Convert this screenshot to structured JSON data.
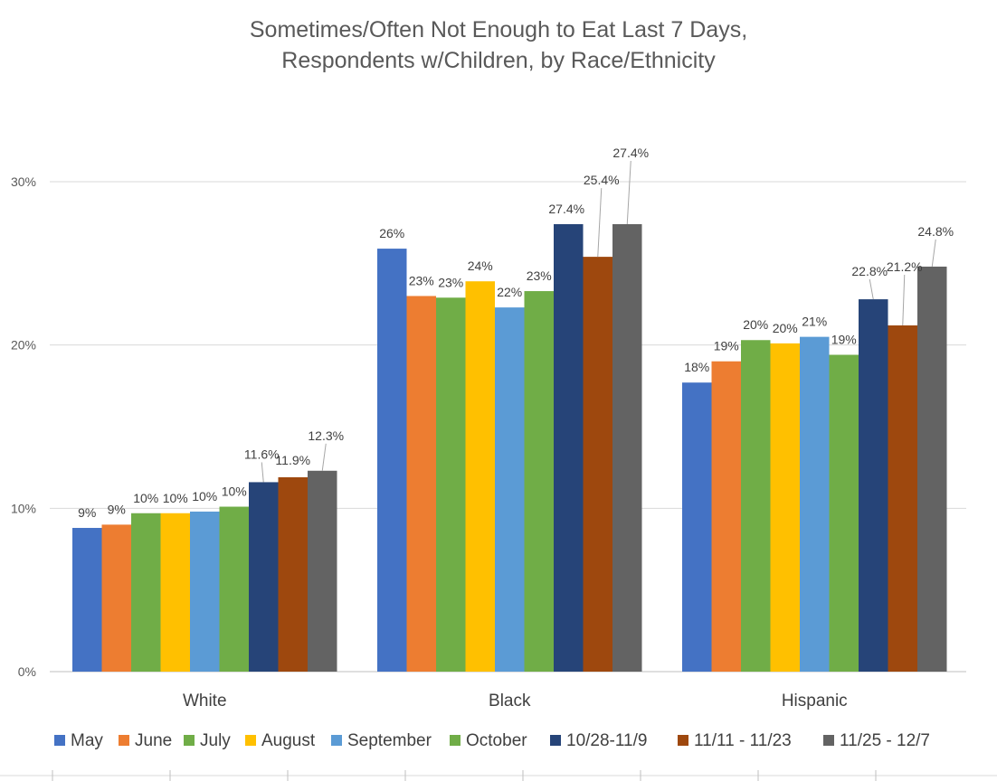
{
  "chart_data": {
    "type": "bar",
    "title_lines": [
      "Sometimes/Often Not Enough to Eat Last 7 Days,",
      "Respondents w/Children, by Race/Ethnicity"
    ],
    "categories": [
      "White",
      "Black",
      "Hispanic"
    ],
    "ylim": [
      0,
      30
    ],
    "yticks": [
      0,
      10,
      20,
      30
    ],
    "ytick_labels": [
      "0%",
      "10%",
      "20%",
      "30%"
    ],
    "grid": true,
    "legend_position": "bottom",
    "series": [
      {
        "name": "May",
        "color": "#4472C4",
        "values": [
          8.8,
          25.9,
          17.7
        ],
        "labels": [
          "9%",
          "26%",
          "18%"
        ]
      },
      {
        "name": "June",
        "color": "#ED7D31",
        "values": [
          9.0,
          23.0,
          19.0
        ],
        "labels": [
          "9%",
          "23%",
          "19%"
        ]
      },
      {
        "name": "July",
        "color": "#70AD47",
        "values": [
          9.7,
          22.9,
          20.3
        ],
        "labels": [
          "10%",
          "23%",
          "20%"
        ]
      },
      {
        "name": "August",
        "color": "#FFC000",
        "values": [
          9.7,
          23.9,
          20.1
        ],
        "labels": [
          "10%",
          "24%",
          "20%"
        ]
      },
      {
        "name": "September",
        "color": "#5B9BD5",
        "values": [
          9.8,
          22.3,
          20.5
        ],
        "labels": [
          "10%",
          "22%",
          "21%"
        ]
      },
      {
        "name": "October",
        "color": "#70AD47",
        "values": [
          10.1,
          23.3,
          19.4
        ],
        "labels": [
          "10%",
          "23%",
          "19%"
        ]
      },
      {
        "name": "10/28-11/9",
        "color": "#264478",
        "values": [
          11.6,
          27.4,
          22.8
        ],
        "labels": [
          "11.6%",
          "27.4%",
          "22.8%"
        ]
      },
      {
        "name": "11/11 - 11/23",
        "color": "#9E480E",
        "values": [
          11.9,
          25.4,
          21.2
        ],
        "labels": [
          "11.9%",
          "25.4%",
          "21.2%"
        ]
      },
      {
        "name": "11/25 - 12/7",
        "color": "#636363",
        "values": [
          12.3,
          27.4,
          24.8
        ],
        "labels": [
          "12.3%",
          "27.4%",
          "24.8%"
        ]
      }
    ]
  }
}
